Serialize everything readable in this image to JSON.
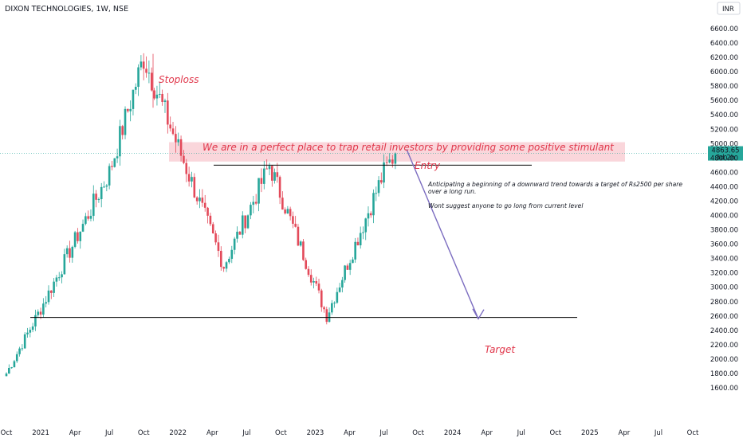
{
  "header": {
    "title": "DIXON TECHNOLOGIES, 1W, NSE",
    "currency": "INR"
  },
  "colors": {
    "up": "#26a69a",
    "down": "#e34a5a",
    "annotation": "#e0364a",
    "arrow": "#7b6cc0",
    "zone": "#f9cfd5",
    "price_line": "#26a69a"
  },
  "chart_data": {
    "type": "candlestick",
    "title": "DIXON TECHNOLOGIES, 1W, NSE",
    "ylim": [
      1540,
      6800
    ],
    "y_ticks": [
      "6600.00",
      "6400.00",
      "6200.00",
      "6000.00",
      "5800.00",
      "5600.00",
      "5400.00",
      "5200.00",
      "5000.00",
      "4800.00",
      "4600.00",
      "4400.00",
      "4200.00",
      "4000.00",
      "3800.00",
      "3600.00",
      "3400.00",
      "3200.00",
      "3000.00",
      "2800.00",
      "2600.00",
      "2400.00",
      "2200.00",
      "2000.00",
      "1800.00",
      "1600.00"
    ],
    "x_ticks": [
      "Oct",
      "2021",
      "Apr",
      "Jul",
      "Oct",
      "2022",
      "Apr",
      "Jul",
      "Oct",
      "2023",
      "Apr",
      "Jul",
      "Oct",
      "2024",
      "Apr",
      "Jul",
      "Oct",
      "2025",
      "Apr",
      "Jul",
      "Oct"
    ],
    "last_price": "4863.65",
    "countdown": "3d 2h",
    "key_points": [
      {
        "date": "2020-10",
        "close": 1800
      },
      {
        "date": "2021-01",
        "close": 2700
      },
      {
        "date": "2021-07",
        "close": 4600
      },
      {
        "date": "2021-10",
        "close": 6200,
        "label": "high"
      },
      {
        "date": "2022-05",
        "close": 3300
      },
      {
        "date": "2022-09",
        "close": 4700
      },
      {
        "date": "2023-02",
        "close": 2600
      },
      {
        "date": "2023-07",
        "close": 4600
      },
      {
        "date": "2023-08",
        "close": 4864
      }
    ],
    "levels": [
      {
        "name": "resistance",
        "value": 4700
      },
      {
        "name": "support",
        "value": 2580
      }
    ]
  },
  "annotations": {
    "stoploss": "Stoploss",
    "headline": "We are in a perfect place to trap retail investors by providing some positive stimulant",
    "entry": "Entry",
    "target": "Target",
    "note_line1": "Anticipating a beginning of a downward trend towards a target of Rs2500 per share",
    "note_line2": "over a long run.",
    "note_line3": "Wont suggest anyone to go long from current level"
  }
}
